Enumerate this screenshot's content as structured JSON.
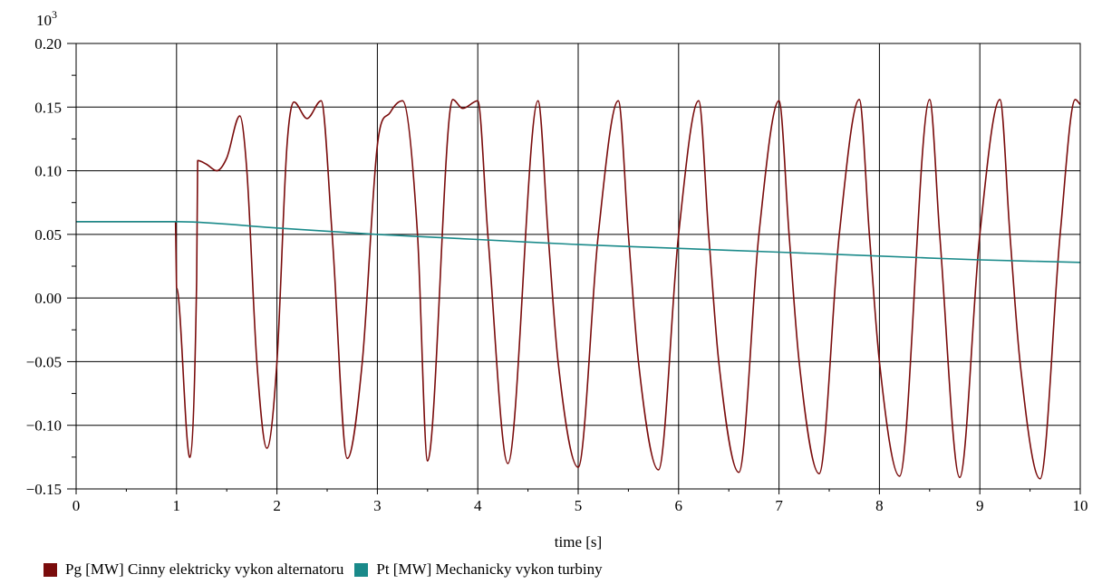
{
  "chart_data": {
    "type": "line",
    "title": "",
    "scale_label": "10",
    "scale_exponent": "3",
    "xlabel": "time [s]",
    "ylabel": "",
    "xlim": [
      0,
      10
    ],
    "ylim": [
      -0.15,
      0.2
    ],
    "x_ticks": [
      "0",
      "1",
      "2",
      "3",
      "4",
      "5",
      "6",
      "7",
      "8",
      "9",
      "10"
    ],
    "x_tick_values": [
      0,
      1,
      2,
      3,
      4,
      5,
      6,
      7,
      8,
      9,
      10
    ],
    "y_ticks": [
      "0.20",
      "0.15",
      "0.10",
      "0.05",
      "0.00",
      "−0.05",
      "−0.10",
      "−0.15"
    ],
    "y_tick_values": [
      0.2,
      0.15,
      0.1,
      0.05,
      0.0,
      -0.05,
      -0.1,
      -0.15
    ],
    "grid": true,
    "legend_position": "bottom-left",
    "series": [
      {
        "name": "Pg [MW] Cinny elektricky vykon alternatoru",
        "color": "#7a0c0c",
        "x": [
          0,
          0.99,
          1.0,
          1.2,
          1.21,
          1.3,
          1.4,
          1.5,
          1.63,
          1.7,
          1.8,
          1.9,
          2.0,
          2.1,
          2.17,
          2.3,
          2.44,
          2.55,
          2.7,
          2.85,
          3.0,
          3.13,
          3.25,
          3.4,
          3.5,
          3.75,
          3.85,
          4.0,
          4.1,
          4.3,
          4.6,
          4.7,
          4.8,
          5.0,
          5.2,
          5.4,
          5.5,
          5.6,
          5.8,
          6.0,
          6.2,
          6.3,
          6.4,
          6.6,
          6.8,
          7.0,
          7.1,
          7.2,
          7.4,
          7.6,
          7.8,
          7.9,
          8.0,
          8.2,
          8.5,
          8.6,
          8.8,
          9.0,
          9.2,
          9.3,
          9.4,
          9.6,
          9.8,
          9.95,
          10.0
        ],
        "values": [
          0.06,
          0.06,
          0.008,
          0.015,
          0.108,
          0.105,
          0.1,
          0.11,
          0.143,
          0.1,
          -0.05,
          -0.118,
          -0.05,
          0.12,
          0.154,
          0.141,
          0.155,
          0.05,
          -0.126,
          -0.05,
          0.12,
          0.146,
          0.155,
          0.05,
          -0.128,
          0.156,
          0.149,
          0.155,
          0.05,
          -0.13,
          0.155,
          0.05,
          -0.05,
          -0.133,
          0.05,
          0.155,
          0.05,
          -0.05,
          -0.135,
          0.05,
          0.155,
          0.05,
          -0.05,
          -0.137,
          0.05,
          0.155,
          0.05,
          -0.05,
          -0.138,
          0.05,
          0.156,
          0.05,
          -0.05,
          -0.14,
          0.156,
          0.05,
          -0.141,
          0.05,
          0.156,
          0.05,
          -0.05,
          -0.142,
          0.05,
          0.156,
          0.152
        ]
      },
      {
        "name": "Pt [MW] Mechanicky vykon turbiny",
        "color": "#1a8a8a",
        "x": [
          0,
          1.0,
          2.0,
          3.0,
          4.0,
          5.0,
          6.0,
          7.0,
          8.0,
          9.0,
          10.0
        ],
        "values": [
          0.06,
          0.06,
          0.055,
          0.05,
          0.046,
          0.042,
          0.039,
          0.036,
          0.033,
          0.03,
          0.028
        ]
      }
    ]
  }
}
